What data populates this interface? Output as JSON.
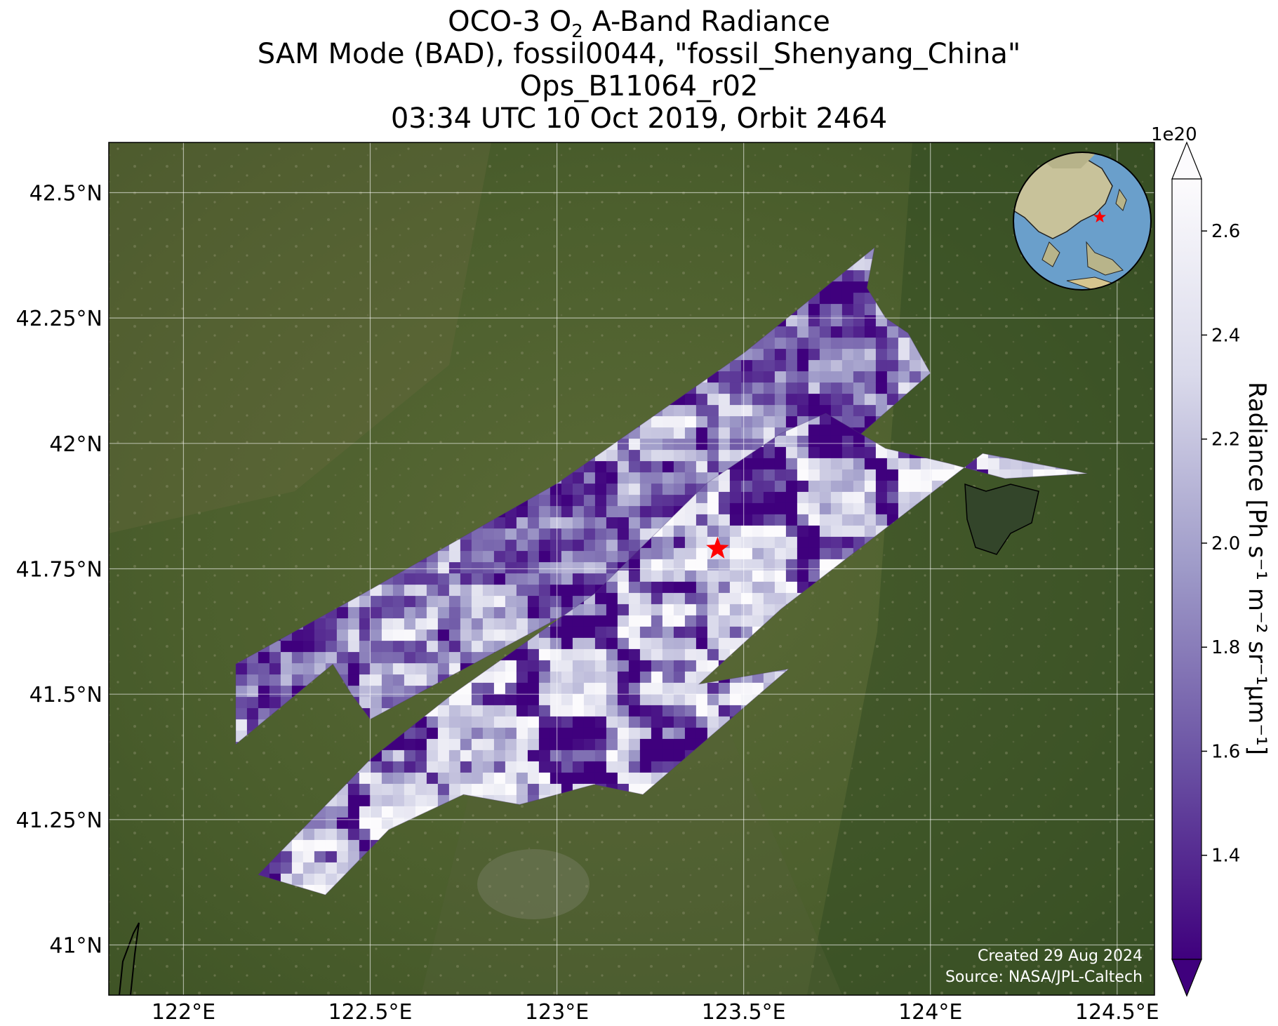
{
  "title": {
    "line1_prefix": "OCO-3 O",
    "line1_sub": "2",
    "line1_suffix": " A-Band Radiance",
    "line2": "SAM Mode (BAD), fossil0044, \"fossil_Shenyang_China\"",
    "line3": "Ops_B11064_r02",
    "line4": "03:34 UTC 10 Oct 2019, Orbit 2464"
  },
  "map": {
    "lon_range": [
      121.8,
      124.6
    ],
    "lat_range": [
      40.9,
      42.6
    ],
    "lon_ticks": [
      122.0,
      122.5,
      123.0,
      123.5,
      124.0,
      124.5
    ],
    "lon_labels": [
      "122°E",
      "122.5°E",
      "123°E",
      "123.5°E",
      "124°E",
      "124.5°E"
    ],
    "lat_ticks": [
      41.0,
      41.25,
      41.5,
      41.75,
      42.0,
      42.25,
      42.5
    ],
    "lat_labels": [
      "41°N",
      "41.25°N",
      "41.5°N",
      "41.75°N",
      "42°N",
      "42.25°N",
      "42.5°N"
    ],
    "target_marker": {
      "lon": 123.43,
      "lat": 41.79,
      "color": "#ff0000",
      "icon": "red-star-icon"
    },
    "basemap": "satellite-imagery",
    "grid": true
  },
  "swaths": [
    {
      "name": "north-swath",
      "outline_lonlat": [
        [
          122.14,
          41.4
        ],
        [
          122.14,
          41.56
        ],
        [
          122.48,
          41.7
        ],
        [
          123.0,
          41.92
        ],
        [
          123.5,
          42.18
        ],
        [
          123.85,
          42.39
        ],
        [
          123.83,
          42.31
        ],
        [
          123.88,
          42.25
        ],
        [
          123.94,
          42.22
        ],
        [
          124.0,
          42.14
        ],
        [
          123.6,
          41.88
        ],
        [
          123.0,
          41.65
        ],
        [
          122.5,
          41.45
        ],
        [
          122.45,
          41.5
        ],
        [
          122.4,
          41.56
        ]
      ],
      "pattern": [
        0.45,
        0.35,
        0.5,
        0.25,
        0.2,
        0.4,
        0.6,
        0.55,
        0.3,
        0.15,
        0.35,
        0.7,
        0.8,
        0.5,
        0.3,
        0.45,
        0.9,
        0.6,
        0.2,
        0.35,
        0.55,
        0.85,
        0.75,
        0.25
      ]
    },
    {
      "name": "south-swath",
      "outline_lonlat": [
        [
          122.2,
          41.14
        ],
        [
          122.38,
          41.1
        ],
        [
          122.55,
          41.23
        ],
        [
          122.75,
          41.3
        ],
        [
          122.9,
          41.28
        ],
        [
          123.1,
          41.32
        ],
        [
          123.23,
          41.3
        ],
        [
          123.62,
          41.55
        ],
        [
          123.38,
          41.52
        ],
        [
          123.6,
          41.67
        ],
        [
          124.14,
          41.98
        ],
        [
          124.42,
          41.94
        ],
        [
          124.2,
          41.93
        ],
        [
          124.05,
          41.96
        ],
        [
          123.88,
          41.99
        ],
        [
          123.72,
          42.06
        ],
        [
          123.6,
          42.02
        ],
        [
          123.4,
          41.92
        ],
        [
          123.1,
          41.7
        ],
        [
          122.72,
          41.5
        ],
        [
          122.5,
          41.37
        ]
      ],
      "pattern": [
        0.2,
        0.05,
        0.1,
        0.3,
        0.95,
        0.9,
        0.85,
        0.6,
        0.1,
        0.05,
        0.3,
        0.98,
        0.95,
        0.9,
        0.4,
        0.2,
        0.7,
        0.98,
        0.96,
        0.92,
        0.5,
        0.85,
        0.97,
        0.99
      ]
    }
  ],
  "inset_globe": {
    "icon": "globe-inset-icon",
    "marker": "red-star-icon"
  },
  "colorbar": {
    "label": "Radiance [Ph s⁻¹ m⁻² sr⁻¹μm⁻¹]",
    "multiplier": "1e20",
    "cmap": "Purples_r",
    "range": [
      1.2,
      2.7
    ],
    "extend": "both",
    "ticks": [
      1.4,
      1.6,
      1.8,
      2.0,
      2.2,
      2.4,
      2.6
    ],
    "tick_labels": [
      "1.4",
      "1.6",
      "1.8",
      "2.0",
      "2.2",
      "2.4",
      "2.6"
    ],
    "color_low": "#3f007d",
    "color_high": "#fcfbfd"
  },
  "credits": {
    "created": "Created 29 Aug 2024",
    "source": "Source: NASA/JPL-Caltech"
  }
}
